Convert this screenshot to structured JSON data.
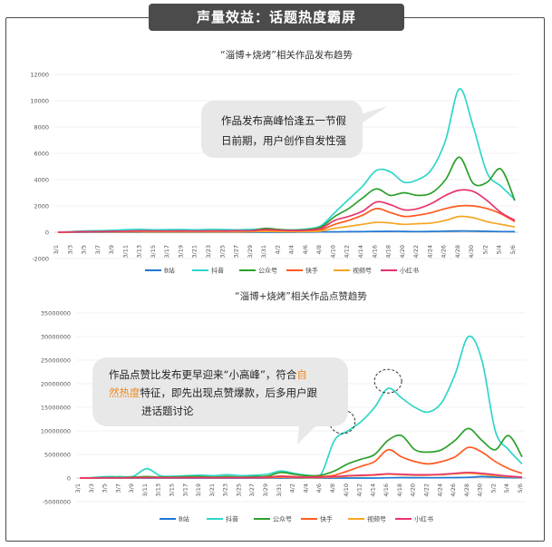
{
  "banner": "声量效益：话题热度霸屏",
  "callouts": [
    {
      "lines": [
        "作品发布高峰恰逢五一节假",
        "日前期，用户创作自发性强"
      ]
    },
    {
      "lines": [
        [
          {
            "t": "作品点赞比发布更早迎来“小高峰”，符合"
          },
          {
            "t": "自",
            "hl": true
          }
        ],
        [
          {
            "t": "然热度",
            "hl": true
          },
          {
            "t": "特征，即先出现点赞爆款，后多用户跟"
          }
        ],
        [
          {
            "t": "进话题讨论"
          }
        ]
      ]
    }
  ],
  "colors": {
    "B站": "#1f77d4",
    "抖音": "#2ed6c8",
    "公众号": "#2ca02c",
    "快手": "#ff5a1f",
    "视频号": "#f5a623",
    "小红书": "#e8336d",
    "frame": "#4a4a4a",
    "banner": "#4b4b4b",
    "highlight": "#f08a24"
  },
  "chart_data": [
    {
      "type": "line",
      "title": "“淄博+烧烤”相关作品发布趋势",
      "ylim": [
        -2000,
        12000
      ],
      "yticks": [
        -2000,
        0,
        2000,
        4000,
        6000,
        8000,
        10000,
        12000
      ],
      "ytick_labels": [
        "-2000",
        "0",
        "2000",
        "4000",
        "6000",
        "8000",
        "10000",
        "12000"
      ],
      "categories": [
        "3/1",
        "3/3",
        "3/5",
        "3/7",
        "3/9",
        "3/11",
        "3/13",
        "3/15",
        "3/17",
        "3/19",
        "3/21",
        "3/23",
        "3/25",
        "3/27",
        "3/29",
        "3/31",
        "4/2",
        "4/4",
        "4/6",
        "4/8",
        "4/10",
        "4/12",
        "4/14",
        "4/16",
        "4/18",
        "4/20",
        "4/22",
        "4/24",
        "4/26",
        "4/28",
        "4/30",
        "5/2",
        "5/4",
        "5/6"
      ],
      "legend_position": "bottom",
      "series": [
        {
          "name": "B站",
          "values": [
            0,
            0,
            0,
            0,
            0,
            0,
            0,
            0,
            0,
            0,
            0,
            0,
            0,
            0,
            0,
            0,
            0,
            0,
            10,
            20,
            30,
            40,
            50,
            60,
            70,
            60,
            50,
            60,
            80,
            100,
            90,
            70,
            50,
            40
          ]
        },
        {
          "name": "抖音",
          "values": [
            0,
            50,
            100,
            120,
            150,
            200,
            220,
            180,
            200,
            200,
            180,
            220,
            200,
            180,
            220,
            250,
            200,
            180,
            250,
            500,
            1500,
            2500,
            3500,
            4700,
            4600,
            3800,
            4000,
            4800,
            7000,
            10900,
            8000,
            4500,
            3500,
            2500
          ]
        },
        {
          "name": "公众号",
          "values": [
            0,
            20,
            40,
            60,
            60,
            80,
            100,
            90,
            80,
            100,
            80,
            90,
            100,
            100,
            120,
            300,
            200,
            150,
            200,
            400,
            1200,
            1800,
            2600,
            3300,
            2800,
            3000,
            2800,
            3000,
            4000,
            5700,
            3700,
            3800,
            4800,
            2400
          ]
        },
        {
          "name": "快手",
          "values": [
            0,
            20,
            30,
            40,
            40,
            50,
            60,
            50,
            50,
            60,
            50,
            60,
            60,
            70,
            80,
            150,
            100,
            80,
            100,
            200,
            600,
            900,
            1300,
            1800,
            1500,
            1200,
            1300,
            1500,
            1800,
            2000,
            2000,
            1800,
            1400,
            800
          ]
        },
        {
          "name": "视频号",
          "values": [
            0,
            10,
            20,
            20,
            20,
            30,
            30,
            30,
            30,
            30,
            30,
            30,
            30,
            30,
            40,
            60,
            50,
            40,
            50,
            100,
            300,
            450,
            600,
            750,
            700,
            600,
            650,
            700,
            900,
            1200,
            1100,
            800,
            600,
            400
          ]
        },
        {
          "name": "小红书",
          "values": [
            0,
            20,
            40,
            50,
            60,
            80,
            100,
            90,
            90,
            100,
            90,
            100,
            100,
            110,
            120,
            200,
            150,
            130,
            150,
            300,
            900,
            1200,
            1600,
            2300,
            2100,
            1700,
            1800,
            2200,
            2800,
            3200,
            3100,
            2400,
            1500,
            900
          ]
        }
      ]
    },
    {
      "type": "line",
      "title": "“淄博+烧烤”相关作品点赞趋势",
      "ylim": [
        -5000000,
        35000000
      ],
      "yticks": [
        -5000000,
        0,
        5000000,
        10000000,
        15000000,
        20000000,
        25000000,
        30000000,
        35000000
      ],
      "ytick_labels": [
        "-5000000",
        "0",
        "5000000",
        "10000000",
        "15000000",
        "20000000",
        "25000000",
        "30000000",
        "35000000"
      ],
      "categories": [
        "3/1",
        "3/3",
        "3/5",
        "3/7",
        "3/9",
        "3/11",
        "3/13",
        "3/15",
        "3/17",
        "3/19",
        "3/21",
        "3/23",
        "3/25",
        "3/27",
        "3/29",
        "3/31",
        "4/2",
        "4/4",
        "4/6",
        "4/8",
        "4/10",
        "4/12",
        "4/14",
        "4/16",
        "4/18",
        "4/20",
        "4/22",
        "4/24",
        "4/26",
        "4/28",
        "4/30",
        "5/2",
        "5/4",
        "5/6"
      ],
      "legend_position": "bottom",
      "series": [
        {
          "name": "B站",
          "values": [
            0,
            0,
            0,
            0,
            0,
            0,
            0,
            0,
            0,
            0,
            0,
            0,
            0,
            0,
            0,
            0,
            0,
            0,
            0,
            0,
            0,
            0,
            0,
            50000,
            100000,
            80000,
            60000,
            80000,
            100000,
            150000,
            300000,
            200000,
            100000,
            50000
          ]
        },
        {
          "name": "抖音",
          "values": [
            0,
            100000,
            300000,
            300000,
            400000,
            2000000,
            500000,
            400000,
            500000,
            600000,
            500000,
            700000,
            500000,
            600000,
            800000,
            1500000,
            1000000,
            600000,
            800000,
            8000000,
            10000000,
            12000000,
            15000000,
            19000000,
            17000000,
            15000000,
            14000000,
            16000000,
            22000000,
            30000000,
            25000000,
            10000000,
            6000000,
            3000000
          ]
        },
        {
          "name": "公众号",
          "values": [
            0,
            50000,
            100000,
            100000,
            200000,
            300000,
            200000,
            200000,
            300000,
            300000,
            200000,
            300000,
            200000,
            300000,
            400000,
            1200000,
            800000,
            500000,
            600000,
            1500000,
            3000000,
            4000000,
            5000000,
            8000000,
            9000000,
            6000000,
            5500000,
            6000000,
            8000000,
            10500000,
            8000000,
            6000000,
            9000000,
            4500000
          ]
        },
        {
          "name": "快手",
          "values": [
            0,
            30000,
            50000,
            50000,
            80000,
            100000,
            100000,
            80000,
            100000,
            100000,
            80000,
            100000,
            100000,
            100000,
            200000,
            400000,
            300000,
            200000,
            300000,
            600000,
            1500000,
            2500000,
            3500000,
            6000000,
            4500000,
            3500000,
            3000000,
            3500000,
            4500000,
            6500000,
            5500000,
            3500000,
            2000000,
            1000000
          ]
        },
        {
          "name": "视频号",
          "values": [
            0,
            10000,
            20000,
            20000,
            30000,
            50000,
            40000,
            40000,
            50000,
            50000,
            40000,
            50000,
            50000,
            60000,
            80000,
            150000,
            100000,
            80000,
            100000,
            200000,
            400000,
            500000,
            600000,
            800000,
            700000,
            600000,
            600000,
            700000,
            900000,
            1000000,
            800000,
            500000,
            300000,
            200000
          ]
        },
        {
          "name": "小红书",
          "values": [
            0,
            20000,
            40000,
            40000,
            60000,
            80000,
            80000,
            60000,
            80000,
            80000,
            60000,
            80000,
            80000,
            90000,
            120000,
            300000,
            200000,
            150000,
            200000,
            300000,
            500000,
            600000,
            700000,
            900000,
            800000,
            700000,
            700000,
            800000,
            1000000,
            1200000,
            1000000,
            700000,
            400000,
            200000
          ]
        }
      ]
    }
  ]
}
